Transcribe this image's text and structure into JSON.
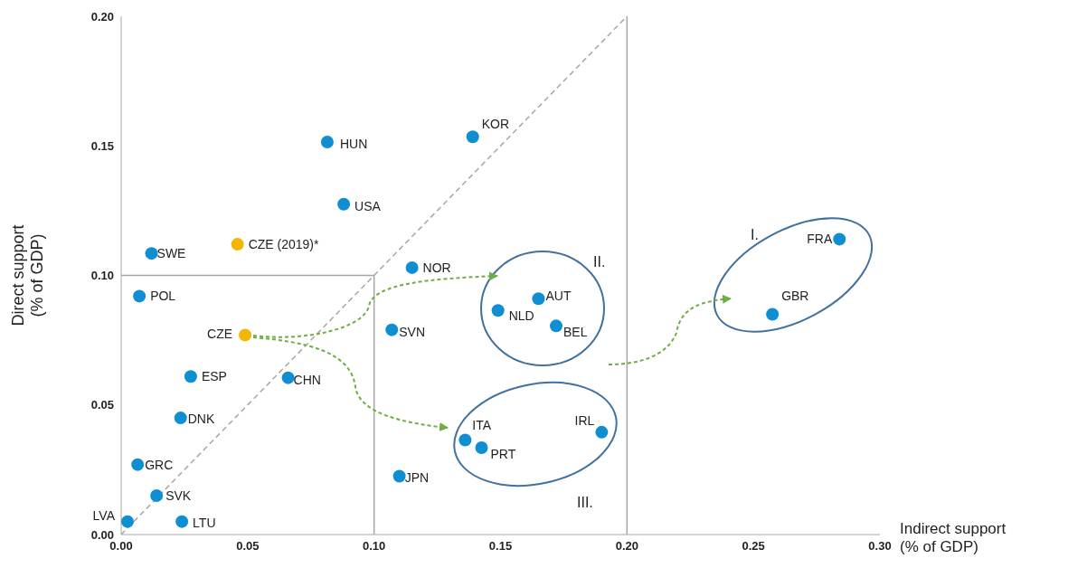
{
  "chart_data": {
    "type": "scatter",
    "xlabel": "Indirect support\n(% of GDP)",
    "ylabel": "Direct support\n(% of GDP)",
    "xlim": [
      0,
      0.3
    ],
    "ylim": [
      0,
      0.2
    ],
    "xticks": [
      {
        "value": 0,
        "label": "0.00"
      },
      {
        "value": 0.05,
        "label": "0.05"
      },
      {
        "value": 0.1,
        "label": "0.10"
      },
      {
        "value": 0.15,
        "label": "0.15"
      },
      {
        "value": 0.2,
        "label": "0.20"
      },
      {
        "value": 0.25,
        "label": "0.25"
      },
      {
        "value": 0.3,
        "label": "0.30"
      }
    ],
    "yticks": [
      {
        "value": 0,
        "label": "0.00"
      },
      {
        "value": 0.05,
        "label": "0.05"
      },
      {
        "value": 0.1,
        "label": "0.10"
      },
      {
        "value": 0.15,
        "label": "0.15"
      },
      {
        "value": 0.2,
        "label": "0.20"
      }
    ],
    "marker": "circle",
    "ref_lines": [
      {
        "axis": "x",
        "value": 0.2,
        "color": "#a6a6a6"
      }
    ],
    "annotations": [
      "I.",
      "II.",
      "III."
    ],
    "series": [
      {
        "type": "line",
        "x": [
          0,
          0.2
        ],
        "values": [
          0,
          0.2
        ],
        "color": "#a6a6a6",
        "line_style": "dashed",
        "marker": "none"
      },
      {
        "type": "line",
        "x": [
          0,
          0.1,
          0.1
        ],
        "values": [
          0.1,
          0.1,
          0
        ],
        "color": "#a6a6a6",
        "line_style": "solid",
        "marker": "none"
      },
      {
        "name": "LVA",
        "color": "#0f8fd1",
        "x": [
          0.0025
        ],
        "values": [
          0.005
        ]
      },
      {
        "name": "SVK",
        "color": "#0f8fd1",
        "x": [
          0.014
        ],
        "values": [
          0.015
        ]
      },
      {
        "name": "LTU",
        "color": "#0f8fd1",
        "x": [
          0.024
        ],
        "values": [
          0.005
        ]
      },
      {
        "name": "GRC",
        "color": "#0f8fd1",
        "x": [
          0.0065
        ],
        "values": [
          0.027
        ]
      },
      {
        "name": "DNK",
        "color": "#0f8fd1",
        "x": [
          0.0235
        ],
        "values": [
          0.045
        ]
      },
      {
        "name": "ESP",
        "color": "#0f8fd1",
        "x": [
          0.0275
        ],
        "values": [
          0.061
        ]
      },
      {
        "name": "POL",
        "color": "#0f8fd1",
        "x": [
          0.0072
        ],
        "values": [
          0.092
        ]
      },
      {
        "name": "SWE",
        "color": "#0f8fd1",
        "x": [
          0.012
        ],
        "values": [
          0.1085
        ]
      },
      {
        "name": "CZE",
        "color": "#f2b705",
        "x": [
          0.049
        ],
        "values": [
          0.077
        ]
      },
      {
        "name": "CZE (2019)*",
        "color": "#f2b705",
        "x": [
          0.046
        ],
        "values": [
          0.112
        ]
      },
      {
        "name": "CHN",
        "color": "#0f8fd1",
        "x": [
          0.066
        ],
        "values": [
          0.0605
        ]
      },
      {
        "name": "HUN",
        "color": "#0f8fd1",
        "x": [
          0.0815
        ],
        "values": [
          0.1515
        ]
      },
      {
        "name": "USA",
        "color": "#0f8fd1",
        "x": [
          0.088
        ],
        "values": [
          0.1275
        ]
      },
      {
        "name": "KOR",
        "color": "#0f8fd1",
        "x": [
          0.139
        ],
        "values": [
          0.1535
        ]
      },
      {
        "name": "NOR",
        "color": "#0f8fd1",
        "x": [
          0.115
        ],
        "values": [
          0.103
        ]
      },
      {
        "name": "SVN",
        "color": "#0f8fd1",
        "x": [
          0.107
        ],
        "values": [
          0.079
        ]
      },
      {
        "name": "JPN",
        "color": "#0f8fd1",
        "x": [
          0.11
        ],
        "values": [
          0.0225
        ]
      },
      {
        "name": "ITA",
        "color": "#0f8fd1",
        "x": [
          0.136
        ],
        "values": [
          0.0365
        ]
      },
      {
        "name": "PRT",
        "color": "#0f8fd1",
        "x": [
          0.1425
        ],
        "values": [
          0.0335
        ]
      },
      {
        "name": "IRL",
        "color": "#0f8fd1",
        "x": [
          0.19
        ],
        "values": [
          0.0395
        ]
      },
      {
        "name": "NLD",
        "color": "#0f8fd1",
        "x": [
          0.149
        ],
        "values": [
          0.0865
        ]
      },
      {
        "name": "AUT",
        "color": "#0f8fd1",
        "x": [
          0.165
        ],
        "values": [
          0.091
        ]
      },
      {
        "name": "BEL",
        "color": "#0f8fd1",
        "x": [
          0.172
        ],
        "values": [
          0.0805
        ]
      },
      {
        "name": "GBR",
        "color": "#0f8fd1",
        "x": [
          0.2575
        ],
        "values": [
          0.085
        ]
      },
      {
        "name": "FRA",
        "color": "#0f8fd1",
        "x": [
          0.284
        ],
        "values": [
          0.114
        ]
      }
    ]
  }
}
